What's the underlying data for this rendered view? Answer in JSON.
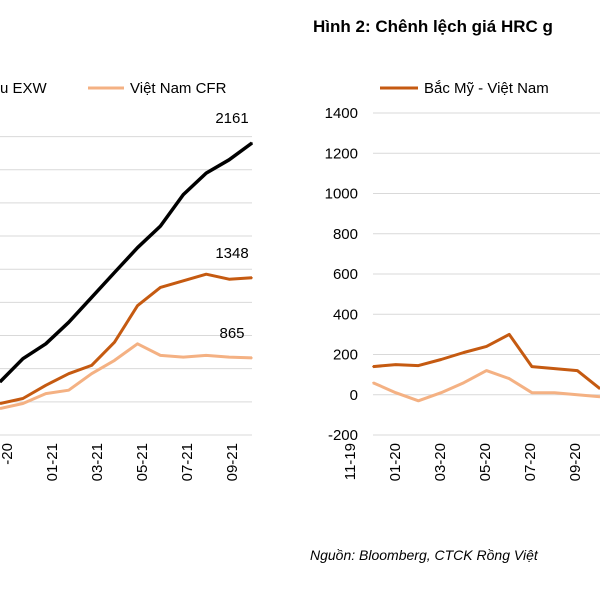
{
  "right_title": "Hình 2: Chênh lệch giá HRC g",
  "source_note": "Nguồn: Bloomberg, CTCK Rồng Việt",
  "colors": {
    "black": "#000000",
    "dark_orange": "#c55a11",
    "light_orange": "#f4b183",
    "grid": "#d9d9d9"
  },
  "chart_data": [
    {
      "type": "line",
      "legend": [
        {
          "label": "u EXW",
          "color": "#000000"
        },
        {
          "label": "Việt Nam CFR",
          "color": "#f4b183"
        }
      ],
      "x_tick_labels": [
        "-20",
        "01-21",
        "03-21",
        "05-21",
        "07-21",
        "09-21"
      ],
      "x": [
        "2020-11",
        "2020-12",
        "2021-01",
        "2021-02",
        "2021-03",
        "2021-04",
        "2021-05",
        "2021-06",
        "2021-07",
        "2021-08",
        "2021-09",
        "2021-10"
      ],
      "ylim": [
        400,
        2300
      ],
      "grid": true,
      "series": [
        {
          "name": "u EXW",
          "color": "#000000",
          "values": [
            720,
            860,
            950,
            1080,
            1230,
            1380,
            1530,
            1660,
            1850,
            1980,
            2060,
            2161
          ],
          "end_label": "2161"
        },
        {
          "color": "#c55a11",
          "values": [
            590,
            620,
            700,
            770,
            820,
            960,
            1180,
            1290,
            1330,
            1370,
            1340,
            1348
          ],
          "end_label": "1348"
        },
        {
          "name": "Việt Nam CFR",
          "color": "#f4b183",
          "values": [
            560,
            590,
            650,
            670,
            770,
            850,
            950,
            880,
            870,
            880,
            870,
            865
          ],
          "end_label": "865"
        }
      ]
    },
    {
      "type": "line",
      "legend": [
        {
          "label": "Bắc Mỹ - Việt Nam",
          "color": "#c55a11"
        }
      ],
      "y_ticks": [
        1400,
        1200,
        1000,
        800,
        600,
        400,
        200,
        0,
        -200
      ],
      "x_tick_labels": [
        "11-19",
        "01-20",
        "03-20",
        "05-20",
        "07-20",
        "09-20"
      ],
      "x": [
        "2019-11",
        "2019-12",
        "2020-01",
        "2020-02",
        "2020-03",
        "2020-04",
        "2020-05",
        "2020-06",
        "2020-07",
        "2020-08",
        "2020-09"
      ],
      "ylim": [
        -200,
        1400
      ],
      "grid": true,
      "series": [
        {
          "name": "Bắc Mỹ - Việt Nam",
          "color": "#c55a11",
          "values": [
            140,
            150,
            145,
            175,
            210,
            240,
            300,
            140,
            130,
            120,
            30
          ]
        },
        {
          "color": "#f4b183",
          "values": [
            60,
            10,
            -30,
            10,
            60,
            120,
            80,
            10,
            10,
            0,
            -10
          ]
        }
      ]
    }
  ]
}
